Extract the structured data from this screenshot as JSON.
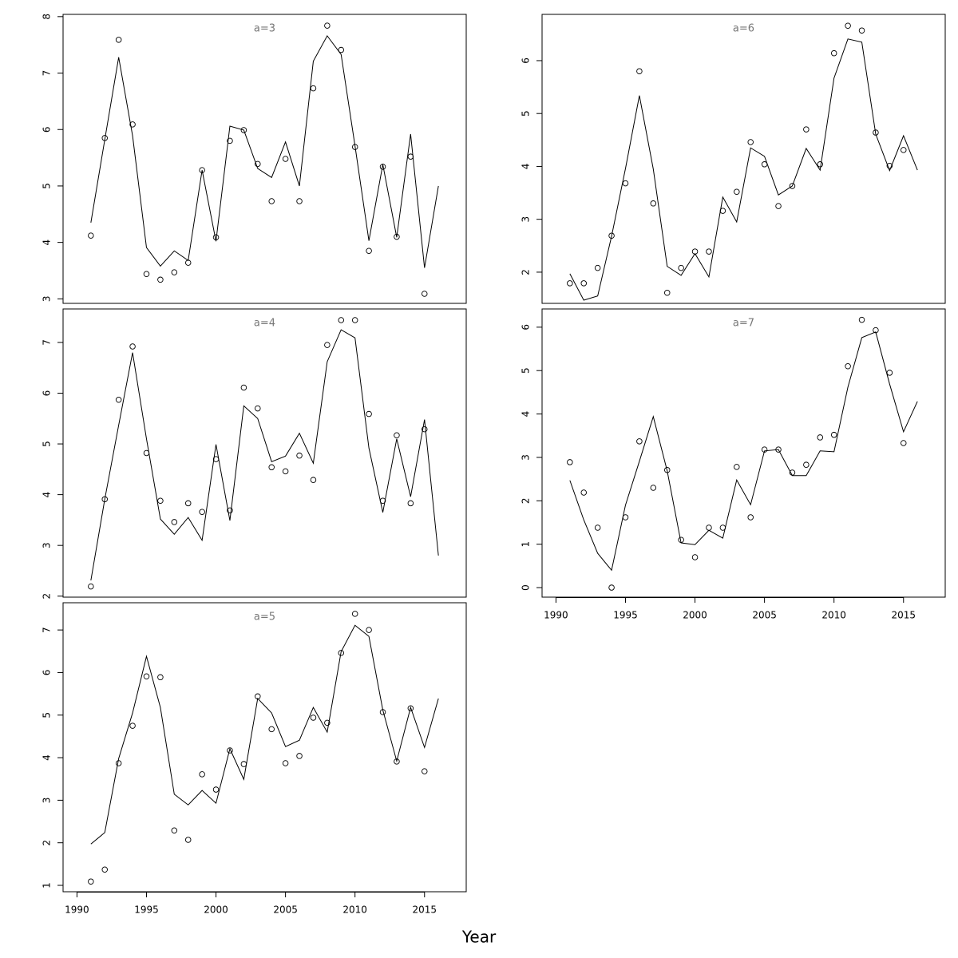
{
  "xlabel": "Year",
  "chart_data": [
    {
      "type": "line",
      "title": "a=3",
      "x": [
        1991,
        1992,
        1993,
        1994,
        1995,
        1996,
        1997,
        1998,
        1999,
        2000,
        2001,
        2002,
        2003,
        2004,
        2005,
        2006,
        2007,
        2008,
        2009,
        2010,
        2011,
        2012,
        2013,
        2014,
        2015,
        2016
      ],
      "series": [
        {
          "kind": "points",
          "color": "#000000",
          "values": [
            4.12,
            5.85,
            7.59,
            6.09,
            3.44,
            3.34,
            3.47,
            3.64,
            5.28,
            4.09,
            5.8,
            5.99,
            5.39,
            4.73,
            5.48,
            4.73,
            6.73,
            7.84,
            7.41,
            5.69,
            3.85,
            5.34,
            4.1,
            5.52,
            3.09,
            null
          ]
        },
        {
          "kind": "line",
          "color": "#000000",
          "values": [
            4.35,
            5.82,
            7.28,
            5.89,
            3.91,
            3.58,
            3.85,
            3.68,
            5.28,
            4.02,
            6.06,
            5.99,
            5.31,
            5.15,
            5.78,
            5.0,
            7.21,
            7.66,
            7.33,
            5.71,
            4.03,
            5.38,
            4.09,
            5.92,
            3.55,
            5.0
          ]
        }
      ],
      "xlim": [
        1989,
        2018
      ],
      "ylim": [
        2.92,
        8.04
      ],
      "yticks": [
        3,
        4,
        5,
        6,
        7,
        8
      ]
    },
    {
      "type": "line",
      "title": "a=4",
      "x": [
        1991,
        1992,
        1993,
        1994,
        1995,
        1996,
        1997,
        1998,
        1999,
        2000,
        2001,
        2002,
        2003,
        2004,
        2005,
        2006,
        2007,
        2008,
        2009,
        2010,
        2011,
        2012,
        2013,
        2014,
        2015,
        2016
      ],
      "series": [
        {
          "kind": "points",
          "color": "#000000",
          "values": [
            2.19,
            3.91,
            5.87,
            6.92,
            4.82,
            3.88,
            3.46,
            3.83,
            3.66,
            4.7,
            3.69,
            6.11,
            5.7,
            4.54,
            4.46,
            4.77,
            4.29,
            6.95,
            7.44,
            7.44,
            5.59,
            3.88,
            5.17,
            3.83,
            5.29,
            null
          ]
        },
        {
          "kind": "line",
          "color": "#000000",
          "values": [
            2.31,
            3.91,
            5.37,
            6.8,
            5.1,
            3.52,
            3.22,
            3.55,
            3.1,
            4.99,
            3.49,
            5.75,
            5.5,
            4.65,
            4.76,
            5.21,
            4.62,
            6.62,
            7.25,
            7.09,
            4.92,
            3.65,
            5.1,
            3.96,
            5.48,
            2.8
          ]
        }
      ],
      "xlim": [
        1989,
        2018
      ],
      "ylim": [
        1.98,
        7.66
      ],
      "yticks": [
        2,
        3,
        4,
        5,
        6,
        7
      ]
    },
    {
      "type": "line",
      "title": "a=5",
      "x": [
        1991,
        1992,
        1993,
        1994,
        1995,
        1996,
        1997,
        1998,
        1999,
        2000,
        2001,
        2002,
        2003,
        2004,
        2005,
        2006,
        2007,
        2008,
        2009,
        2010,
        2011,
        2012,
        2013,
        2014,
        2015,
        2016
      ],
      "series": [
        {
          "kind": "points",
          "color": "#000000",
          "values": [
            1.09,
            1.37,
            3.87,
            4.75,
            5.91,
            5.89,
            2.29,
            2.07,
            3.61,
            3.25,
            4.17,
            3.85,
            5.44,
            4.67,
            3.87,
            4.04,
            4.94,
            4.82,
            6.46,
            7.38,
            7.0,
            5.07,
            3.91,
            5.16,
            3.68,
            null
          ]
        },
        {
          "kind": "line",
          "color": "#000000",
          "values": [
            1.97,
            2.24,
            3.98,
            5.05,
            6.38,
            5.18,
            3.14,
            2.89,
            3.23,
            2.93,
            4.21,
            3.49,
            5.39,
            5.05,
            4.26,
            4.41,
            5.18,
            4.6,
            6.49,
            7.11,
            6.85,
            5.12,
            3.92,
            5.18,
            4.24,
            5.39
          ]
        }
      ],
      "xlim": [
        1989,
        2018
      ],
      "ylim": [
        0.85,
        7.64
      ],
      "yticks": [
        1,
        2,
        3,
        4,
        5,
        6,
        7
      ],
      "xticks": [
        1990,
        1995,
        2000,
        2005,
        2010,
        2015
      ]
    },
    {
      "type": "line",
      "title": "a=6",
      "x": [
        1991,
        1992,
        1993,
        1994,
        1995,
        1996,
        1997,
        1998,
        1999,
        2000,
        2001,
        2002,
        2003,
        2004,
        2005,
        2006,
        2007,
        2008,
        2009,
        2010,
        2011,
        2012,
        2013,
        2014,
        2015,
        2016
      ],
      "series": [
        {
          "kind": "points",
          "color": "#000000",
          "values": [
            1.79,
            1.79,
            2.08,
            2.69,
            3.68,
            5.8,
            3.3,
            1.61,
            2.08,
            2.39,
            2.39,
            3.16,
            3.52,
            4.46,
            4.04,
            3.25,
            3.63,
            4.7,
            4.04,
            6.14,
            6.66,
            6.57,
            4.64,
            4.01,
            4.31,
            null
          ]
        },
        {
          "kind": "line",
          "color": "#000000",
          "values": [
            1.97,
            1.47,
            1.55,
            2.68,
            3.96,
            5.34,
            3.95,
            2.11,
            1.94,
            2.35,
            1.91,
            3.42,
            2.95,
            4.35,
            4.19,
            3.46,
            3.63,
            4.34,
            3.93,
            5.67,
            6.41,
            6.35,
            4.61,
            3.92,
            4.58,
            3.93
          ]
        }
      ],
      "xlim": [
        1989,
        2018
      ],
      "ylim": [
        1.41,
        6.875
      ],
      "yticks": [
        2,
        3,
        4,
        5,
        6
      ]
    },
    {
      "type": "line",
      "title": "a=7",
      "x": [
        1991,
        1992,
        1993,
        1994,
        1995,
        1996,
        1997,
        1998,
        1999,
        2000,
        2001,
        2002,
        2003,
        2004,
        2005,
        2006,
        2007,
        2008,
        2009,
        2010,
        2011,
        2012,
        2013,
        2014,
        2015,
        2016
      ],
      "series": [
        {
          "kind": "points",
          "color": "#000000",
          "values": [
            2.89,
            2.19,
            1.38,
            0.0,
            1.62,
            3.37,
            2.3,
            2.71,
            1.1,
            0.7,
            1.38,
            1.38,
            2.78,
            1.62,
            3.18,
            3.18,
            2.65,
            2.83,
            3.46,
            3.52,
            5.1,
            6.17,
            5.93,
            4.95,
            3.33,
            null
          ]
        },
        {
          "kind": "line",
          "color": "#000000",
          "values": [
            2.47,
            1.56,
            0.79,
            0.4,
            1.9,
            2.91,
            3.94,
            2.69,
            1.03,
            0.99,
            1.32,
            1.14,
            2.48,
            1.91,
            3.15,
            3.18,
            2.58,
            2.58,
            3.15,
            3.13,
            4.62,
            5.76,
            5.89,
            4.69,
            3.59,
            4.29
          ]
        }
      ],
      "xlim": [
        1989,
        2018
      ],
      "ylim": [
        -0.22,
        6.42
      ],
      "yticks": [
        0,
        1,
        2,
        3,
        4,
        5,
        6
      ],
      "xticks": [
        1990,
        1995,
        2000,
        2005,
        2010,
        2015
      ]
    }
  ]
}
